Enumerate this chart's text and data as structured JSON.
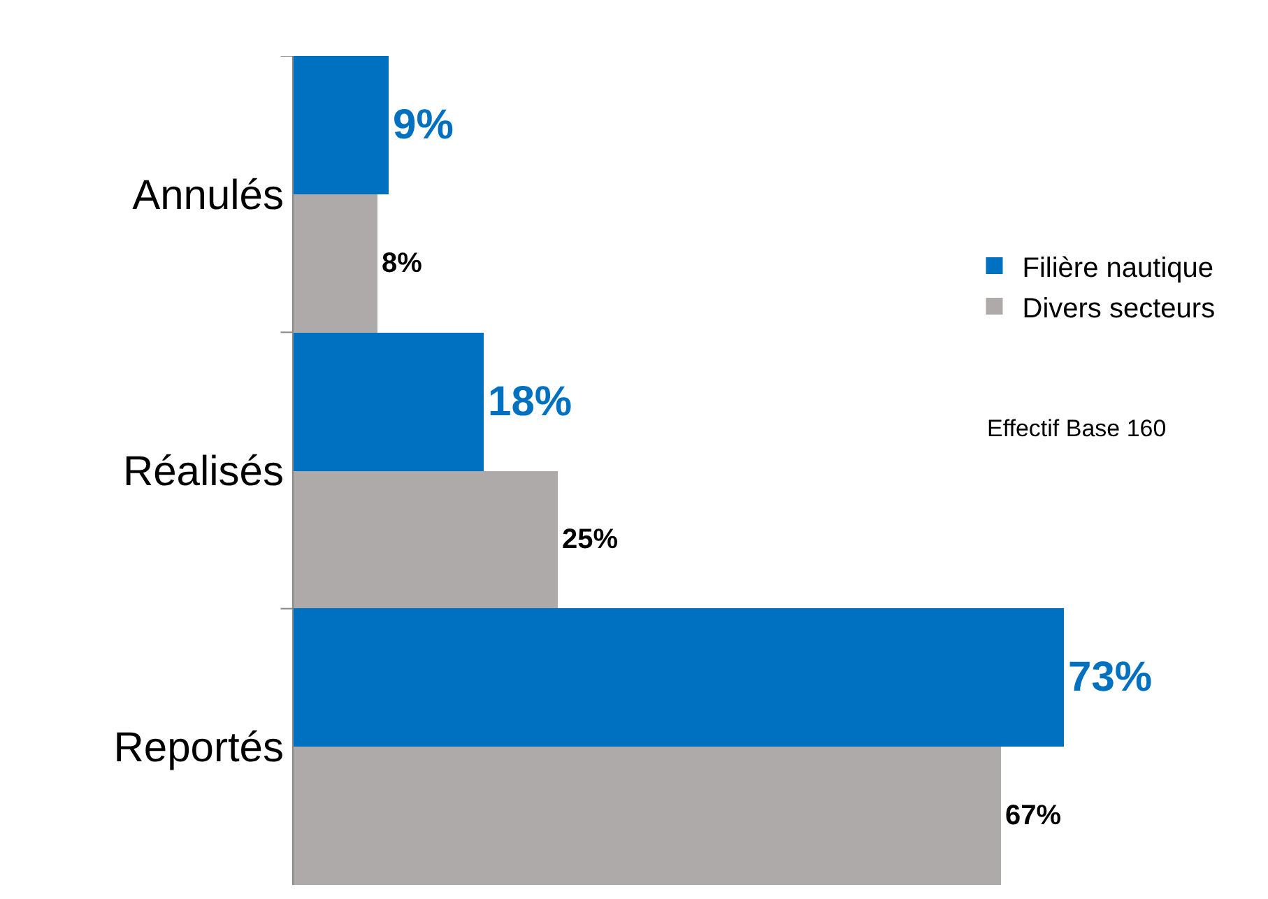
{
  "chart_data": {
    "type": "bar",
    "orientation": "horizontal",
    "categories": [
      "Annulés",
      "Réalisés",
      "Reportés"
    ],
    "series": [
      {
        "name": "Filière nautique",
        "color": "#0070c0",
        "values": [
          9,
          18,
          73
        ],
        "value_labels": [
          "9%",
          "18%",
          "73%"
        ]
      },
      {
        "name": "Divers secteurs",
        "color": "#aeaaaa",
        "values": [
          8,
          25,
          67
        ],
        "value_labels": [
          "8%",
          "25%",
          "67%"
        ]
      }
    ],
    "annotations": [
      "Effectif Base 160"
    ],
    "legend": "right"
  }
}
